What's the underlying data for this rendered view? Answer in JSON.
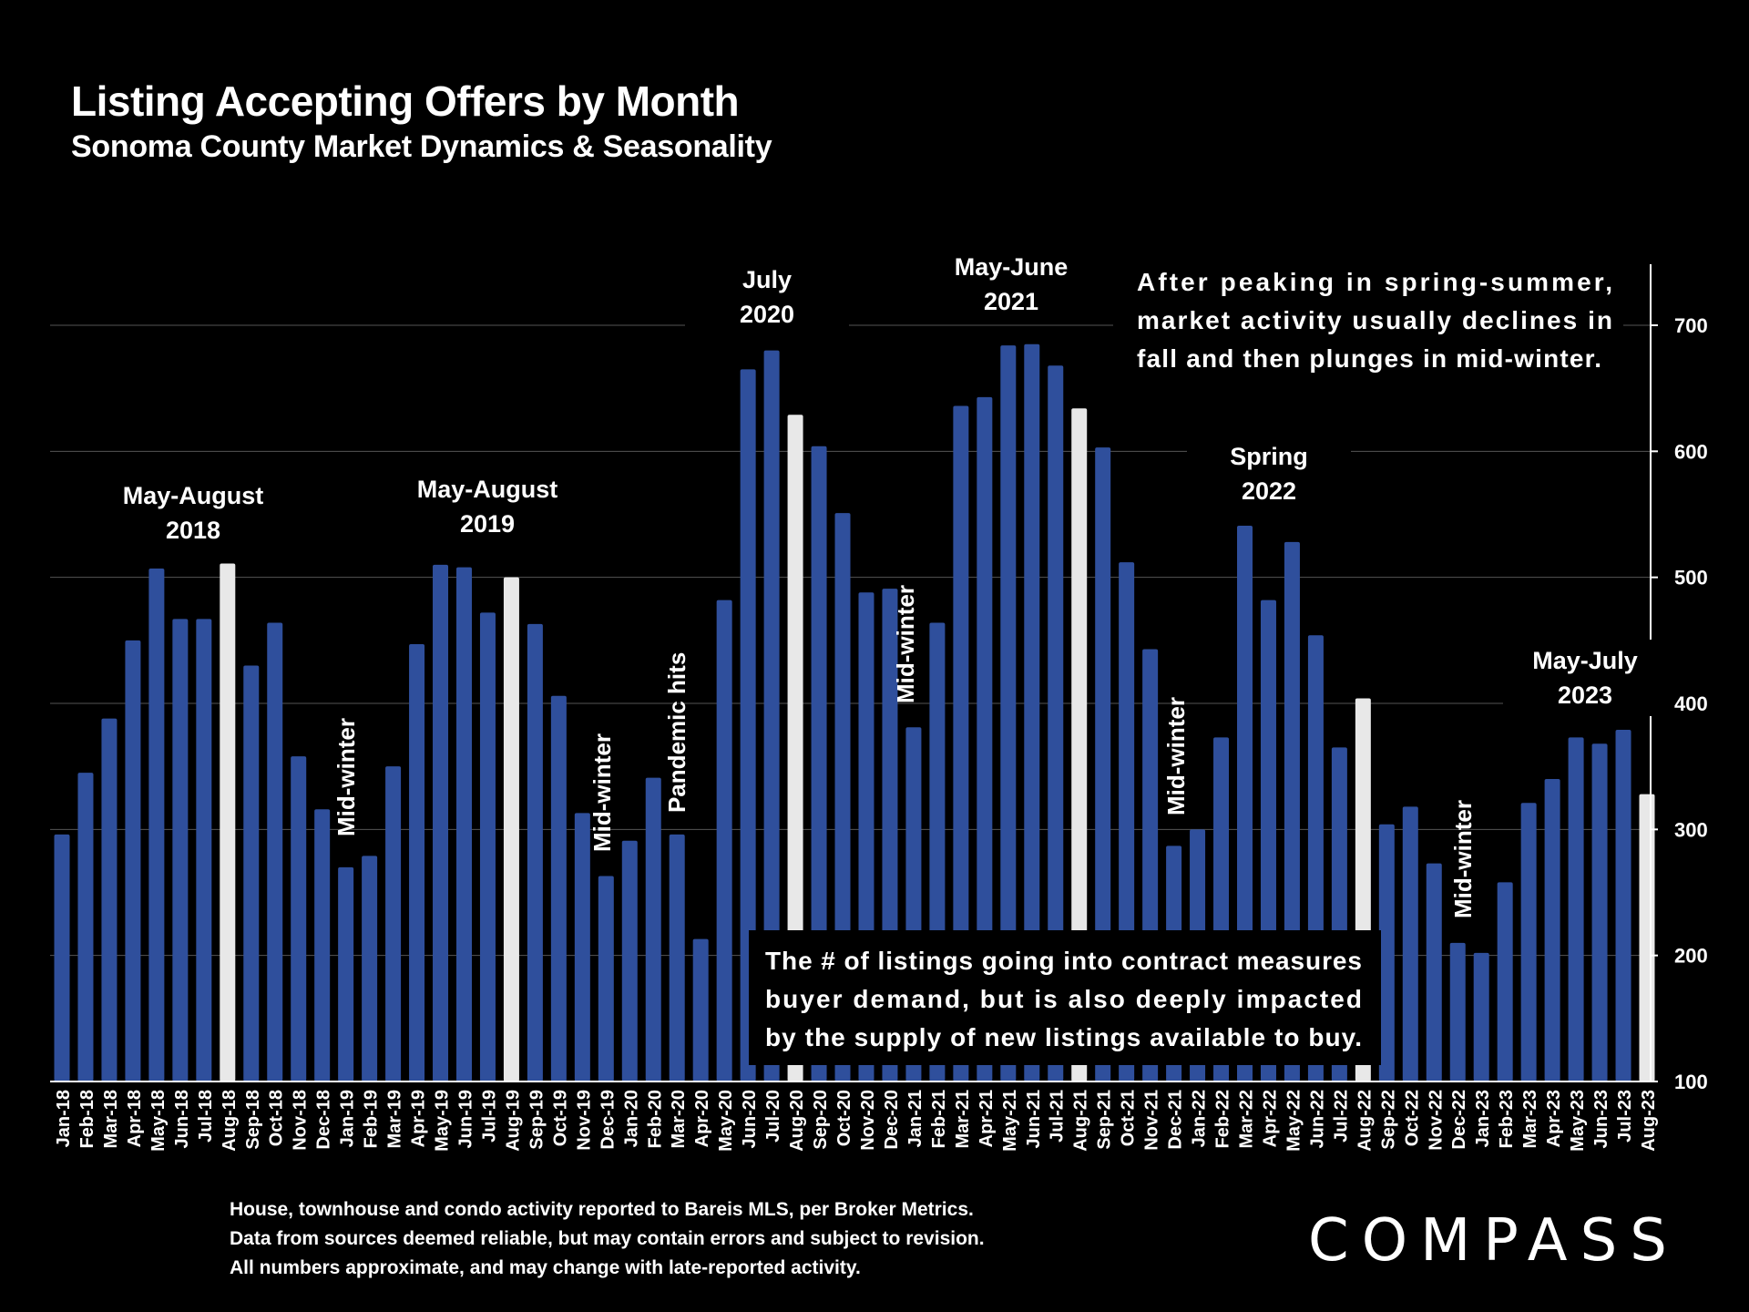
{
  "chart_data": {
    "type": "bar",
    "title": "Listing Accepting Offers by Month",
    "subtitle": "Sonoma County Market Dynamics & Seasonality",
    "xlabel": "",
    "ylabel": "",
    "ylim": [
      100,
      750
    ],
    "yticks": [
      100,
      200,
      300,
      400,
      500,
      600,
      700
    ],
    "grid": true,
    "y_axis_side": "right",
    "categories": [
      "Jan-18",
      "Feb-18",
      "Mar-18",
      "Apr-18",
      "May-18",
      "Jun-18",
      "Jul-18",
      "Aug-18",
      "Sep-18",
      "Oct-18",
      "Nov-18",
      "Dec-18",
      "Jan-19",
      "Feb-19",
      "Mar-19",
      "Apr-19",
      "May-19",
      "Jun-19",
      "Jul-19",
      "Aug-19",
      "Sep-19",
      "Oct-19",
      "Nov-19",
      "Dec-19",
      "Jan-20",
      "Feb-20",
      "Mar-20",
      "Apr-20",
      "May-20",
      "Jun-20",
      "Jul-20",
      "Aug-20",
      "Sep-20",
      "Oct-20",
      "Nov-20",
      "Dec-20",
      "Jan-21",
      "Feb-21",
      "Mar-21",
      "Apr-21",
      "May-21",
      "Jun-21",
      "Jul-21",
      "Aug-21",
      "Sep-21",
      "Oct-21",
      "Nov-21",
      "Dec-21",
      "Jan-22",
      "Feb-22",
      "Mar-22",
      "Apr-22",
      "May-22",
      "Jun-22",
      "Jul-22",
      "Aug-22",
      "Sep-22",
      "Oct-22",
      "Nov-22",
      "Dec-22",
      "Jan-23",
      "Feb-23",
      "Mar-23",
      "Apr-23",
      "May-23",
      "Jun-23",
      "Jul-23",
      "Aug-23"
    ],
    "values": [
      296,
      345,
      388,
      450,
      507,
      467,
      467,
      511,
      430,
      464,
      358,
      316,
      270,
      279,
      350,
      447,
      510,
      508,
      472,
      500,
      463,
      406,
      313,
      263,
      291,
      341,
      296,
      213,
      482,
      665,
      680,
      629,
      604,
      551,
      488,
      491,
      381,
      464,
      636,
      643,
      684,
      685,
      668,
      634,
      603,
      512,
      443,
      287,
      300,
      373,
      541,
      482,
      528,
      454,
      365,
      404,
      304,
      318,
      273,
      210,
      202,
      258,
      321,
      340,
      373,
      368,
      379,
      328
    ],
    "highlight_color": "#e8e8e8",
    "bar_color": "#2f4f9c",
    "highlighted_categories": [
      "Aug-18",
      "Aug-19",
      "Aug-20",
      "Aug-21",
      "Aug-22",
      "Aug-23"
    ],
    "annotations": [
      {
        "text": "May-August\n2018",
        "near": "Jun-18"
      },
      {
        "text": "May-August\n2019",
        "near": "Jul-19"
      },
      {
        "text": "July\n2020",
        "near": "Jul-20"
      },
      {
        "text": "May-June\n2021",
        "near": "May-21"
      },
      {
        "text": "Spring\n2022",
        "near": "Apr-22"
      },
      {
        "text": "May-July\n2023",
        "near": "Jun-23"
      },
      {
        "text": "Mid-winter",
        "near": "Jan-19",
        "rotated": true
      },
      {
        "text": "Mid-winter",
        "near": "Dec-19",
        "rotated": true
      },
      {
        "text": "Pandemic hits",
        "near": "Mar-20",
        "rotated": true
      },
      {
        "text": "Mid-winter",
        "near": "Jan-21",
        "rotated": true
      },
      {
        "text": "Mid-winter",
        "near": "Dec-21",
        "rotated": true
      },
      {
        "text": "Mid-winter",
        "near": "Dec-22",
        "rotated": true
      }
    ],
    "callouts": [
      {
        "name": "top-right-note",
        "lines": [
          "After peaking in spring-summer,",
          "market activity usually declines in",
          "fall and then plunges in mid-winter."
        ]
      },
      {
        "name": "bottom-note",
        "lines": [
          "The # of listings going into contract measures",
          "buyer demand, but is also deeply impacted",
          "by the supply of new listings available to buy."
        ]
      }
    ]
  },
  "footnote": {
    "line1": "House, townhouse and condo activity reported to Bareis MLS, per Broker Metrics.",
    "line2": "Data from sources deemed reliable, but may contain errors and subject to revision.",
    "line3": "All numbers approximate, and may change with late-reported activity."
  },
  "logo": {
    "text": "COMPASS"
  }
}
